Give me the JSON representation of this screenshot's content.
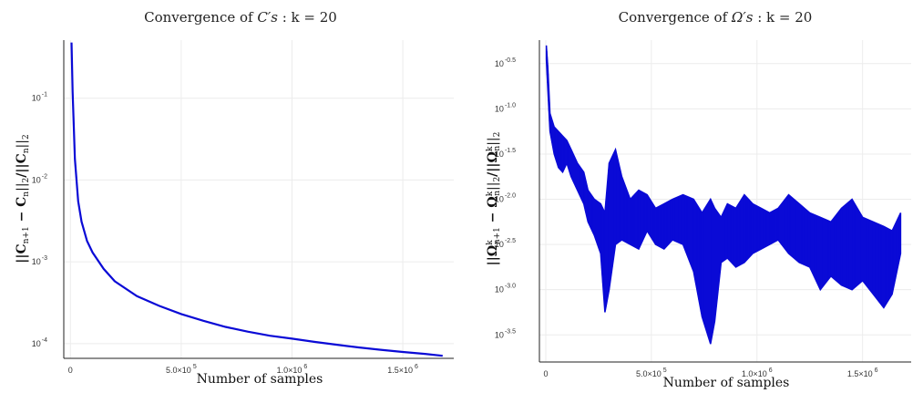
{
  "chart_data": [
    {
      "type": "line",
      "title": "Convergence of C's : k = 20",
      "title_parts": {
        "prefix": "Convergence of ",
        "math": "C′s",
        "suffix": " : k = 20"
      },
      "xlabel": "Number of samples",
      "ylabel": "||C_{n+1} − C_n||_2/||C_n||_2",
      "ylabel_parts": {
        "a": "||C",
        "a_sub": "n+1",
        "b": " − C",
        "b_sub": "n",
        "c": "||",
        "c_sub": "2",
        "d": "/||C",
        "d_sub": "n",
        "e": "||",
        "e_sub": "2"
      },
      "yscale": "log",
      "xlim": [
        -30000,
        1730000
      ],
      "ylim_log10": [
        -4.18,
        -0.29
      ],
      "grid": true,
      "legend": "none",
      "color": "#0a0ad6",
      "x_ticks": [
        {
          "value": 0,
          "text": "0"
        },
        {
          "value": 500000,
          "text": "5.0×10",
          "exp": "5"
        },
        {
          "value": 1000000,
          "text": "1.0×10",
          "exp": "6"
        },
        {
          "value": 1500000,
          "text": "1.5×10",
          "exp": "6"
        }
      ],
      "y_ticks": [
        {
          "log10": -1,
          "text": "10",
          "exp": "-1"
        },
        {
          "log10": -2,
          "text": "10",
          "exp": "-2"
        },
        {
          "log10": -3,
          "text": "10",
          "exp": "-3"
        },
        {
          "log10": -4,
          "text": "10",
          "exp": "-4"
        }
      ],
      "series": [
        {
          "x": [
            5000,
            10000,
            20000,
            35000,
            50000,
            75000,
            100000,
            150000,
            200000,
            300000,
            400000,
            500000,
            600000,
            700000,
            800000,
            900000,
            1000000,
            1100000,
            1200000,
            1300000,
            1400000,
            1500000,
            1600000,
            1680000
          ],
          "y": [
            0.48,
            0.12,
            0.018,
            0.0055,
            0.0031,
            0.0018,
            0.0013,
            0.00082,
            0.00058,
            0.00038,
            0.00029,
            0.00023,
            0.00019,
            0.00016,
            0.00014,
            0.000125,
            0.000115,
            0.000105,
            9.7e-05,
            9e-05,
            8.4e-05,
            7.9e-05,
            7.5e-05,
            7.1e-05
          ]
        }
      ]
    },
    {
      "type": "line",
      "title": "Convergence of Ω's : k = 20",
      "title_parts": {
        "prefix": "Convergence of ",
        "math": "Ω′s",
        "suffix": " : k = 20"
      },
      "xlabel": "Number of samples",
      "ylabel": "||Ω^k_{n+1} − Ω^k_n||_2/||Ω^k_n||_2",
      "ylabel_parts": {
        "a": "||Ω",
        "a_sup": "k",
        "a_sub": "n+1",
        "b": " − Ω",
        "b_sup": "k",
        "b_sub": "n",
        "c": "||",
        "c_sub": "2",
        "d": "/||Ω",
        "d_sup": "k",
        "d_sub": "n",
        "e": "||",
        "e_sub": "2"
      },
      "yscale": "log",
      "xlim": [
        -30000,
        1730000
      ],
      "ylim_log10": [
        -3.8,
        -0.24
      ],
      "grid": true,
      "legend": "none",
      "color": "#0a0ad6",
      "x_ticks": [
        {
          "value": 0,
          "text": "0"
        },
        {
          "value": 500000,
          "text": "5.0×10",
          "exp": "5"
        },
        {
          "value": 1000000,
          "text": "1.0×10",
          "exp": "6"
        },
        {
          "value": 1500000,
          "text": "1.5×10",
          "exp": "6"
        }
      ],
      "y_ticks": [
        {
          "log10": -0.5,
          "text": "10",
          "exp": "-0.5"
        },
        {
          "log10": -1.0,
          "text": "10",
          "exp": "-1.0"
        },
        {
          "log10": -1.5,
          "text": "10",
          "exp": "-1.5"
        },
        {
          "log10": -2.0,
          "text": "10",
          "exp": "-2.0"
        },
        {
          "log10": -2.5,
          "text": "10",
          "exp": "-2.5"
        },
        {
          "log10": -3.0,
          "text": "10",
          "exp": "-3.0"
        },
        {
          "log10": -3.5,
          "text": "10",
          "exp": "-3.5"
        }
      ],
      "series": [
        {
          "x": [
            3000,
            10000,
            20000,
            40000,
            60000,
            80000,
            100000,
            120000,
            150000,
            180000,
            200000,
            230000,
            260000,
            280000,
            300000,
            330000,
            360000,
            400000,
            440000,
            480000,
            520000,
            560000,
            600000,
            650000,
            700000,
            740000,
            780000,
            800000,
            830000,
            860000,
            900000,
            940000,
            980000,
            1020000,
            1060000,
            1100000,
            1150000,
            1200000,
            1250000,
            1300000,
            1350000,
            1400000,
            1450000,
            1500000,
            1550000,
            1600000,
            1640000,
            1680000
          ],
          "y_low_log10": [
            -0.45,
            -0.8,
            -1.25,
            -1.5,
            -1.65,
            -1.7,
            -1.6,
            -1.75,
            -1.9,
            -2.05,
            -2.25,
            -2.4,
            -2.6,
            -3.25,
            -3.0,
            -2.5,
            -2.45,
            -2.5,
            -2.55,
            -2.35,
            -2.5,
            -2.55,
            -2.45,
            -2.5,
            -2.8,
            -3.3,
            -3.6,
            -3.35,
            -2.7,
            -2.65,
            -2.75,
            -2.7,
            -2.6,
            -2.55,
            -2.5,
            -2.45,
            -2.6,
            -2.7,
            -2.75,
            -3.0,
            -2.85,
            -2.95,
            -3.0,
            -2.9,
            -3.05,
            -3.2,
            -3.05,
            -2.6
          ],
          "y_high_log10": [
            -0.3,
            -0.55,
            -1.05,
            -1.2,
            -1.25,
            -1.3,
            -1.35,
            -1.45,
            -1.6,
            -1.7,
            -1.9,
            -2.0,
            -2.05,
            -2.15,
            -1.6,
            -1.45,
            -1.75,
            -2.0,
            -1.9,
            -1.95,
            -2.1,
            -2.05,
            -2.0,
            -1.95,
            -2.0,
            -2.15,
            -2.0,
            -2.1,
            -2.2,
            -2.05,
            -2.1,
            -1.95,
            -2.05,
            -2.1,
            -2.15,
            -2.1,
            -1.95,
            -2.05,
            -2.15,
            -2.2,
            -2.25,
            -2.1,
            -2.0,
            -2.2,
            -2.25,
            -2.3,
            -2.35,
            -2.15
          ]
        }
      ]
    }
  ]
}
